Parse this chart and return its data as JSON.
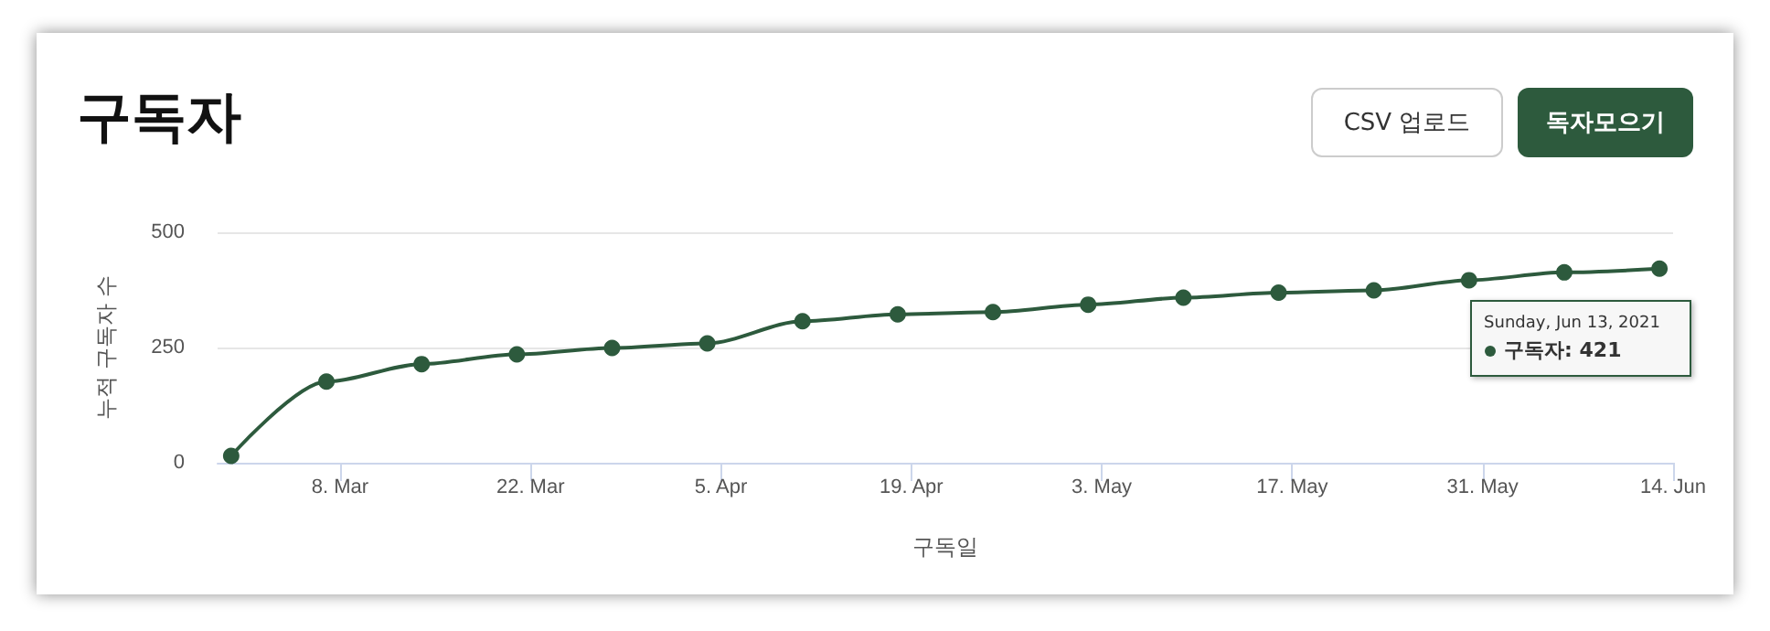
{
  "chart_data": {
    "type": "line",
    "title": "구독자",
    "xlabel": "구독일",
    "ylabel": "누적 구독자 수",
    "x": [
      "2021-02-28",
      "2021-03-07",
      "2021-03-14",
      "2021-03-21",
      "2021-03-28",
      "2021-04-04",
      "2021-04-11",
      "2021-04-18",
      "2021-04-25",
      "2021-05-02",
      "2021-05-09",
      "2021-05-16",
      "2021-05-23",
      "2021-05-30",
      "2021-06-06",
      "2021-06-13"
    ],
    "series": [
      {
        "color": "#2d5a3d",
        "values": [
          15,
          176,
          214,
          235,
          249,
          259,
          307,
          322,
          327,
          343,
          358,
          369,
          374,
          396,
          413,
          421
        ]
      }
    ],
    "xlim": [
      "2021-02-27",
      "2021-06-14"
    ],
    "xticks": [
      {
        "value": "2021-03-08",
        "label": "8. Mar"
      },
      {
        "value": "2021-03-22",
        "label": "22. Mar"
      },
      {
        "value": "2021-04-05",
        "label": "5. Apr"
      },
      {
        "value": "2021-04-19",
        "label": "19. Apr"
      },
      {
        "value": "2021-05-03",
        "label": "3. May"
      },
      {
        "value": "2021-05-17",
        "label": "17. May"
      },
      {
        "value": "2021-05-31",
        "label": "31. May"
      },
      {
        "value": "2021-06-14",
        "label": "14. Jun"
      }
    ],
    "ylim": [
      0,
      500
    ],
    "yticks": [
      0,
      250,
      500
    ],
    "grid": "y",
    "marker": "circle",
    "line_style": "solid",
    "annotations": [
      "CSV 업로드",
      "독자모으기",
      {
        "text": "Sunday, Jun 13, 2021\n구독자: 421",
        "x": "2021-06-13",
        "y": 421
      }
    ]
  }
}
